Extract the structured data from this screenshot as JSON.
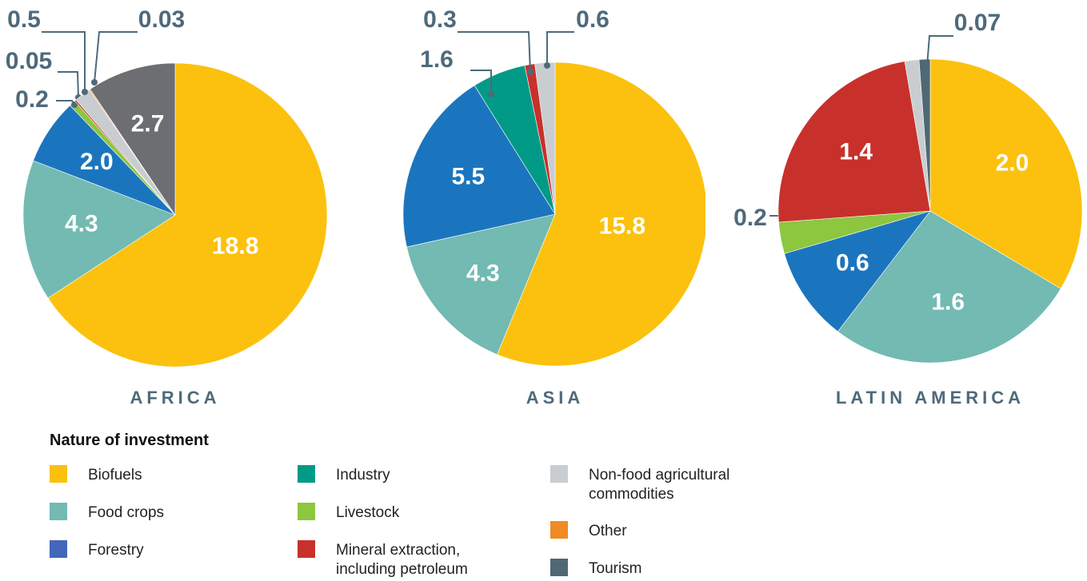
{
  "chart_data": [
    {
      "type": "pie",
      "title": "AFRICA",
      "categories": [
        "Biofuels",
        "Food crops",
        "Forestry",
        "Livestock",
        "Mineral extraction, including petroleum",
        "Non-food agricultural commodities",
        "Other",
        "Tourism"
      ],
      "values": [
        18.8,
        4.3,
        2.0,
        0.2,
        0.05,
        0.5,
        0.03,
        2.7
      ],
      "value_labels": [
        "18.8",
        "4.3",
        "2.0",
        "0.2",
        "0.05",
        "0.5",
        "0.03",
        "2.7"
      ],
      "colors": [
        "#fbc10e",
        "#72bab2",
        "#1b75be",
        "#8dc63f",
        "#c8312b",
        "#c9cdd0",
        "#f08a24",
        "#6d6e71"
      ]
    },
    {
      "type": "pie",
      "title": "ASIA",
      "categories": [
        "Biofuels",
        "Food crops",
        "Forestry",
        "Industry",
        "Mineral extraction, including petroleum",
        "Non-food agricultural commodities"
      ],
      "values": [
        15.8,
        4.3,
        5.5,
        1.6,
        0.3,
        0.6
      ],
      "value_labels": [
        "15.8",
        "4.3",
        "5.5",
        "1.6",
        "0.3",
        "0.6"
      ],
      "colors": [
        "#fbc10e",
        "#72bab2",
        "#1b75be",
        "#009a86",
        "#c8312b",
        "#c9cdd0"
      ]
    },
    {
      "type": "pie",
      "title": "LATIN AMERICA",
      "categories": [
        "Biofuels",
        "Food crops",
        "Forestry",
        "Livestock",
        "Mineral extraction, including petroleum",
        "Non-food agricultural commodities",
        "Tourism"
      ],
      "values": [
        2.0,
        1.6,
        0.6,
        0.2,
        1.4,
        0.09,
        0.07
      ],
      "value_labels": [
        "2.0",
        "1.6",
        "0.6",
        "0.2",
        "1.4",
        null,
        "0.07"
      ],
      "colors": [
        "#fbc10e",
        "#72bab2",
        "#1b75be",
        "#8dc63f",
        "#c8312b",
        "#c9cdd0",
        "#4f6874"
      ]
    }
  ],
  "legend": {
    "title": "Nature of investment",
    "items": [
      {
        "name": "Biofuels",
        "color": "#fbc10e"
      },
      {
        "name": "Food crops",
        "color": "#72bab2"
      },
      {
        "name": "Forestry",
        "color": "#4466bb"
      },
      {
        "name": "Industry",
        "color": "#009a86"
      },
      {
        "name": "Livestock",
        "color": "#8dc63f"
      },
      {
        "name": "Mineral extraction, including petroleum",
        "color": "#c8312b"
      },
      {
        "name": "Non-food agricultural commodities",
        "color": "#c9cdd0"
      },
      {
        "name": "Other",
        "color": "#f08a24"
      },
      {
        "name": "Tourism",
        "color": "#4f6874"
      }
    ]
  }
}
